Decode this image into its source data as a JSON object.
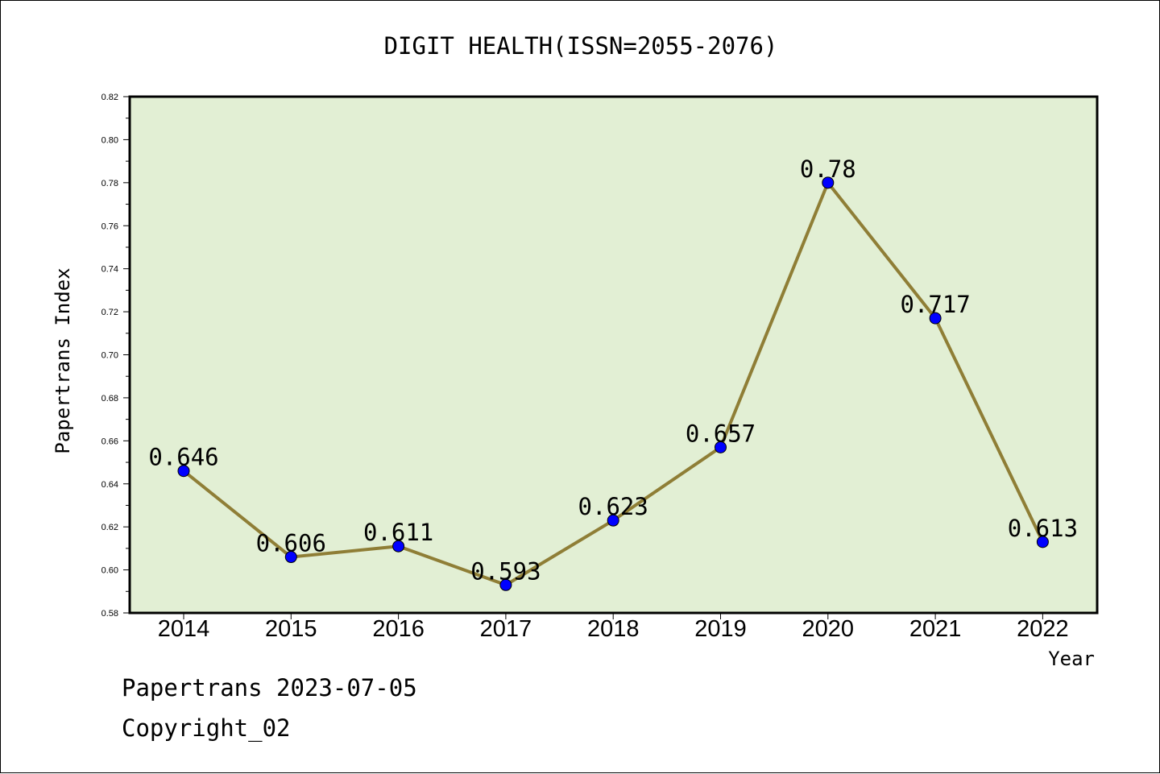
{
  "colors": {
    "plot_bg": "#e2efd4",
    "line": "#8f7e36",
    "marker": "#0000ff",
    "axis": "#000000"
  },
  "chart_data": {
    "type": "line",
    "title": "DIGIT HEALTH(ISSN=2055-2076)",
    "xlabel": "Year",
    "ylabel": "Papertrans Index",
    "categories": [
      "2014",
      "2015",
      "2016",
      "2017",
      "2018",
      "2019",
      "2020",
      "2021",
      "2022"
    ],
    "series": [
      {
        "values": [
          0.646,
          0.606,
          0.611,
          0.593,
          0.623,
          0.657,
          0.78,
          0.717,
          0.613
        ],
        "data_labels": [
          "0.646",
          "0.606",
          "0.611",
          "0.593",
          "0.623",
          "0.657",
          "0.78",
          "0.717",
          "0.613"
        ]
      }
    ],
    "ylim": [
      0.58,
      0.82
    ],
    "yticks": [
      "0.58",
      "0.60",
      "0.62",
      "0.64",
      "0.66",
      "0.68",
      "0.70",
      "0.72",
      "0.74",
      "0.76",
      "0.78",
      "0.80",
      "0.82"
    ],
    "grid": false,
    "legend": "none"
  },
  "footer": {
    "line1": "Papertrans 2023-07-05",
    "line2": "Copyright_02"
  }
}
